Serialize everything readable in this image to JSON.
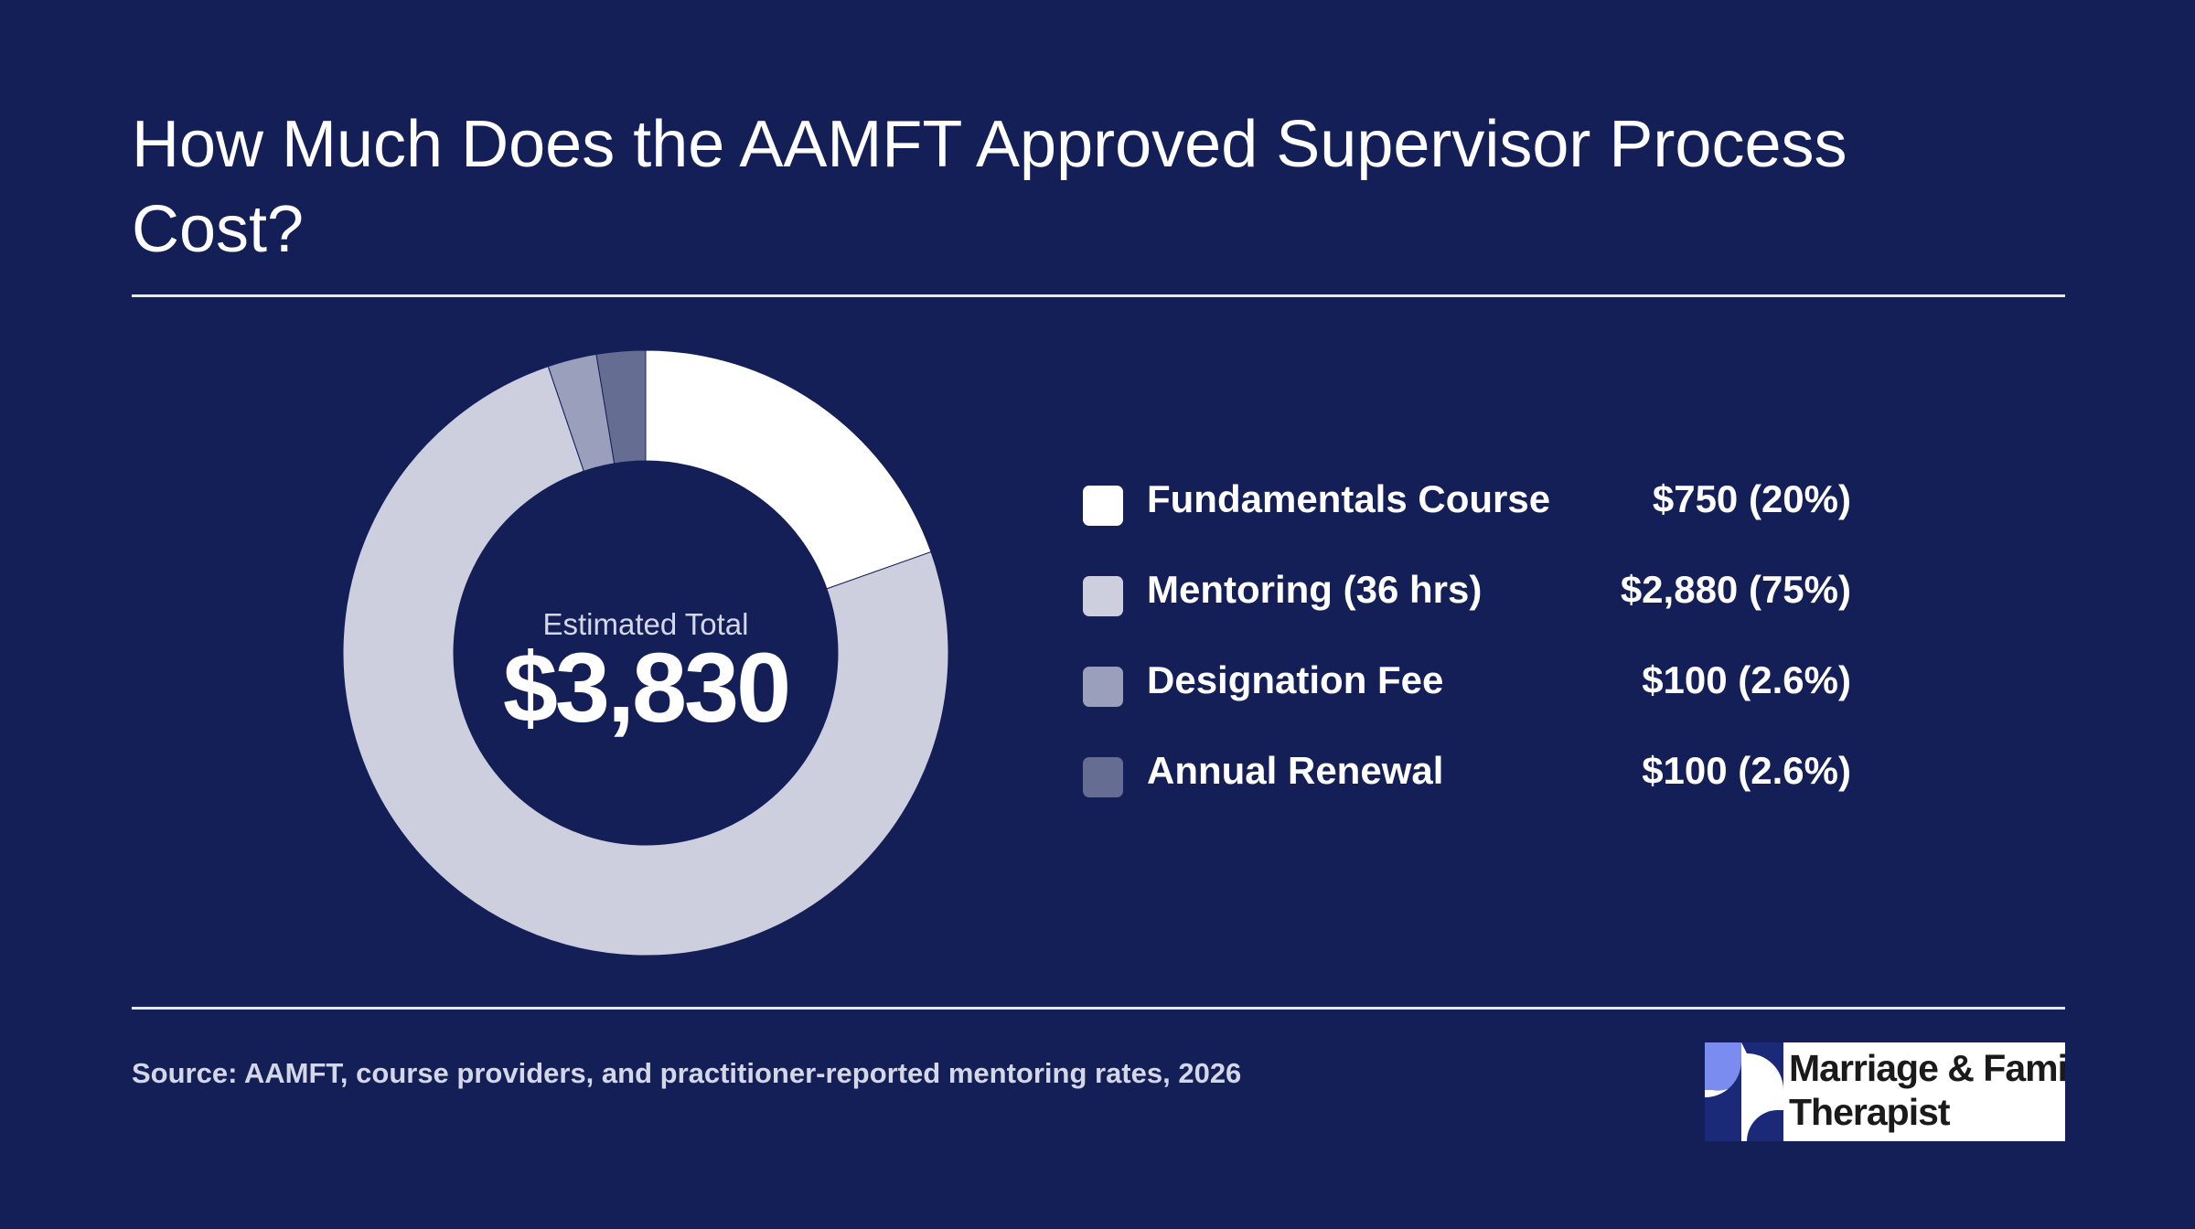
{
  "page": {
    "title": "How Much Does the AAMFT Approved Supervisor Process Cost?",
    "source": "Source: AAMFT, course providers, and practitioner-reported mentoring rates, 2026",
    "background_color": "#141f58"
  },
  "logo": {
    "line1": "Marriage & Family",
    "line2": "Therapist",
    "mark_colors": [
      "#7b8cf0",
      "#1b2a78"
    ]
  },
  "chart_data": {
    "type": "pie",
    "variant": "donut",
    "center_label": "Estimated Total",
    "center_value": "$3,830",
    "total": 3830,
    "slices": [
      {
        "label": "Fundamentals Course",
        "value": 750,
        "display": "$750 (20%)",
        "color": "#ffffff"
      },
      {
        "label": "Mentoring (36 hrs)",
        "value": 2880,
        "display": "$2,880 (75%)",
        "color": "#cdcfdf"
      },
      {
        "label": "Designation Fee",
        "value": 100,
        "display": "$100 (2.6%)",
        "color": "#9a9fbc"
      },
      {
        "label": "Annual Renewal",
        "value": 100,
        "display": "$100 (2.6%)",
        "color": "#666d93"
      }
    ],
    "legend_position": "right"
  }
}
